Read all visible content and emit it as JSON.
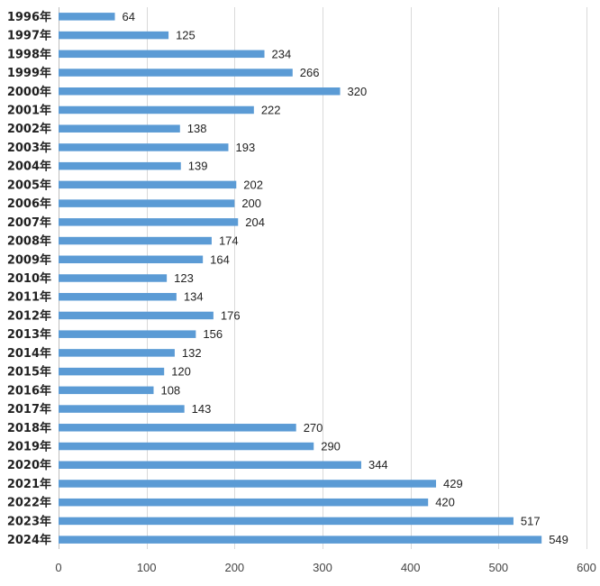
{
  "chart_data": {
    "type": "bar",
    "orientation": "horizontal",
    "title": "",
    "xlabel": "",
    "ylabel": "",
    "categories": [
      "1996年",
      "1997年",
      "1998年",
      "1999年",
      "2000年",
      "2001年",
      "2002年",
      "2003年",
      "2004年",
      "2005年",
      "2006年",
      "2007年",
      "2008年",
      "2009年",
      "2010年",
      "2011年",
      "2012年",
      "2013年",
      "2014年",
      "2015年",
      "2016年",
      "2017年",
      "2018年",
      "2019年",
      "2020年",
      "2021年",
      "2022年",
      "2023年",
      "2024年"
    ],
    "values": [
      64,
      125,
      234,
      266,
      320,
      222,
      138,
      193,
      139,
      202,
      200,
      204,
      174,
      164,
      123,
      134,
      176,
      156,
      132,
      120,
      108,
      143,
      270,
      290,
      344,
      429,
      420,
      517,
      549
    ],
    "xlim": [
      0,
      600
    ],
    "xticks": [
      "0",
      "100",
      "200",
      "300",
      "400",
      "500",
      "600"
    ],
    "grid": true,
    "legend": "none",
    "bar_color": "#5b9bd5",
    "data_labels": true
  }
}
